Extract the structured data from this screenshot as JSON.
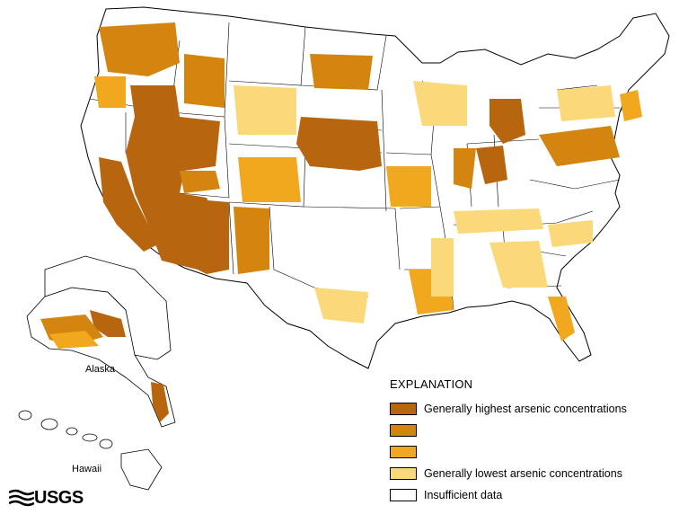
{
  "map": {
    "insets": {
      "alaska_label": "Alaska",
      "hawaii_label": "Hawaii"
    },
    "colors": {
      "level_1": "#b8650f",
      "level_2": "#d3850f",
      "level_3": "#f2a81e",
      "level_4": "#fbd97a",
      "insufficient": "#ffffff",
      "outline": "#000000"
    }
  },
  "legend": {
    "title": "EXPLANATION",
    "items": [
      {
        "label": "Generally highest arsenic concentrations",
        "color": "#b8650f"
      },
      {
        "label": "",
        "color": "#d3850f"
      },
      {
        "label": "",
        "color": "#f2a81e"
      },
      {
        "label": "Generally lowest arsenic concentrations",
        "color": "#fbd97a"
      },
      {
        "label": "Insufficient data",
        "color": "#ffffff"
      }
    ]
  },
  "logo": {
    "text": "USGS",
    "icon": "usgs-wave-logo-icon"
  }
}
